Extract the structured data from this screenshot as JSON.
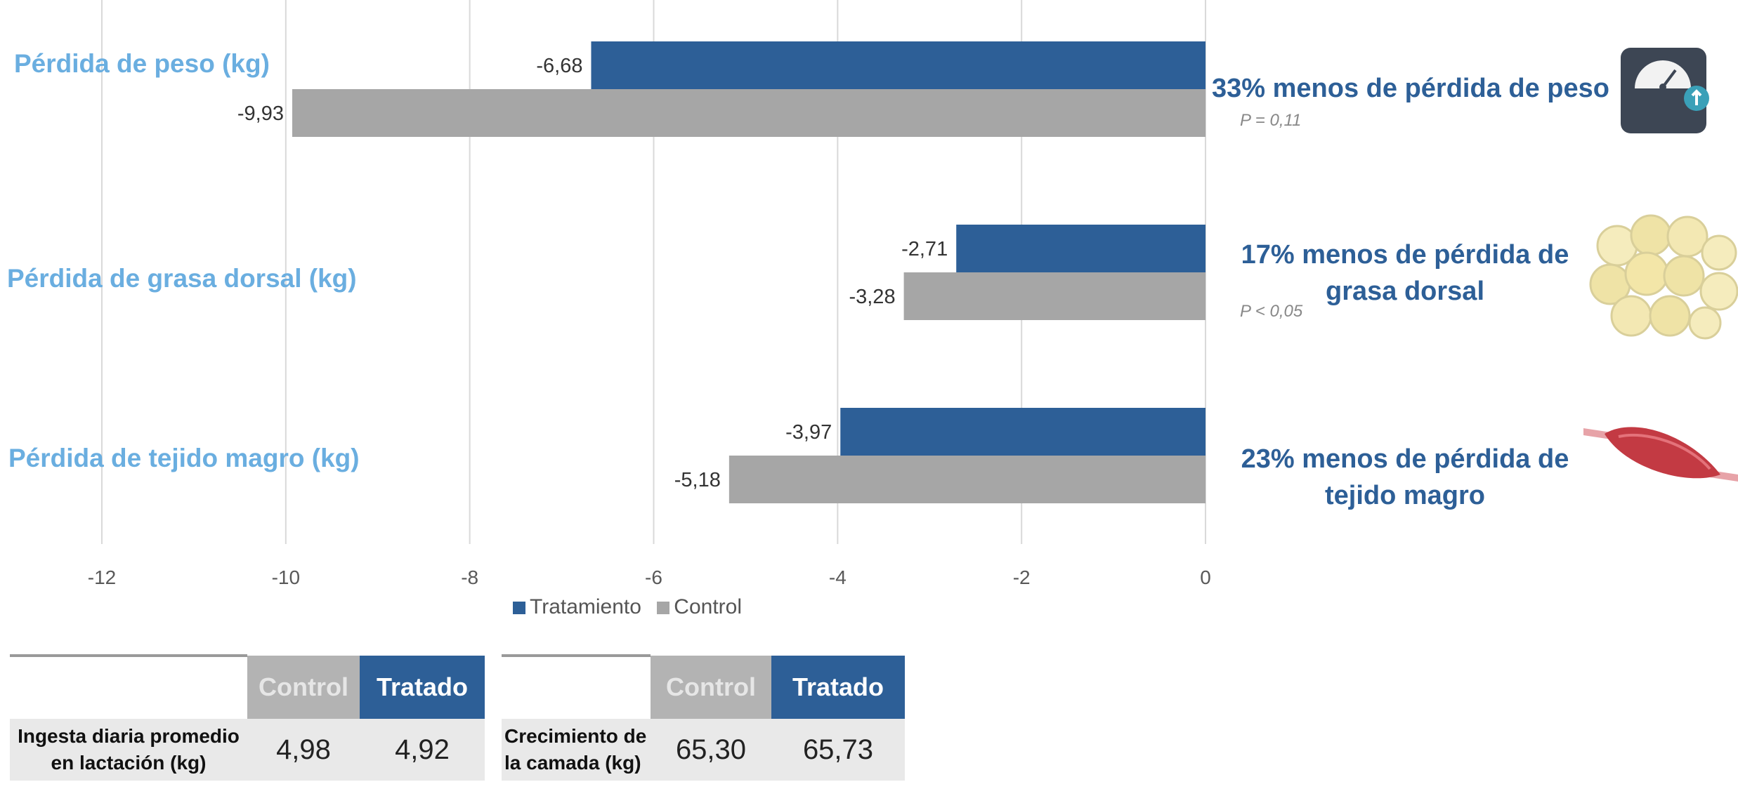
{
  "chart_data": {
    "type": "bar",
    "orientation": "horizontal",
    "categories": [
      "Pérdida de peso (kg)",
      "Pérdida de grasa dorsal (kg)",
      "Pérdida de tejido magro (kg)"
    ],
    "series": [
      {
        "name": "Tratamiento",
        "color": "#2d5f97",
        "values": [
          -6.68,
          -2.71,
          -3.97
        ],
        "labels": [
          "-6,68",
          "-2,71",
          "-3,97"
        ]
      },
      {
        "name": "Control",
        "color": "#a6a6a6",
        "values": [
          -9.93,
          -3.28,
          -5.18
        ],
        "labels": [
          "-9,93",
          "-3,28",
          "-5,18"
        ]
      }
    ],
    "xlim": [
      -12,
      0
    ],
    "xticks": [
      -12,
      -10,
      -8,
      -6,
      -4,
      -2,
      0
    ],
    "xtick_labels": [
      "-12",
      "-10",
      "-8",
      "-6",
      "-4",
      "-2",
      "0"
    ],
    "grid": true,
    "legend_position": "bottom"
  },
  "annotations": [
    {
      "text": "33% menos de pérdida de peso",
      "p_value": "P = 0,11",
      "icon": "scale-icon"
    },
    {
      "text": "17% menos de pérdida de grasa dorsal",
      "p_value": "P < 0,05",
      "icon": "fat-cells-icon"
    },
    {
      "text": "23% menos de pérdida de tejido magro",
      "p_value": "",
      "icon": "muscle-icon"
    }
  ],
  "tables": [
    {
      "header_control": "Control",
      "header_treated": "Tratado",
      "row_label": "Ingesta diaria promedio en lactación (kg)",
      "control": "4,98",
      "treated": "4,92"
    },
    {
      "header_control": "Control",
      "header_treated": "Tratado",
      "row_label": "Crecimiento de la camada (kg)",
      "control": "65,30",
      "treated": "65,73"
    }
  ]
}
